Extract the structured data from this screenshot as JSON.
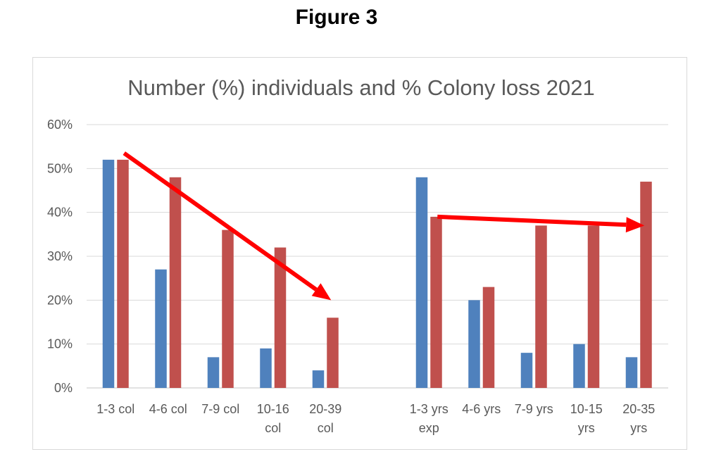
{
  "figure_title": "Figure 3",
  "chart_data": {
    "type": "bar",
    "title": "Number (%) individuals and % Colony loss 2021",
    "xlabel": "",
    "ylabel": "",
    "ylim": [
      0,
      60
    ],
    "y_ticks": [
      "0%",
      "10%",
      "20%",
      "30%",
      "40%",
      "50%",
      "60%"
    ],
    "grid": true,
    "legend": "none",
    "groups": [
      {
        "categories": [
          [
            "1-3 col"
          ],
          [
            "4-6 col"
          ],
          [
            "7-9 col"
          ],
          [
            "10-16",
            "col"
          ],
          [
            "20-39",
            "col"
          ]
        ],
        "series": [
          {
            "color": "#4f81bd",
            "values": [
              52,
              27,
              7,
              9,
              4
            ]
          },
          {
            "color": "#c0504d",
            "values": [
              52,
              48,
              36,
              32,
              16
            ]
          }
        ]
      },
      {
        "categories": [
          [
            "1-3 yrs",
            "exp"
          ],
          [
            "4-6 yrs"
          ],
          [
            "7-9 yrs"
          ],
          [
            "10-15",
            "yrs"
          ],
          [
            "20-35",
            "yrs"
          ]
        ],
        "series": [
          {
            "color": "#4f81bd",
            "values": [
              48,
              20,
              8,
              10,
              7
            ]
          },
          {
            "color": "#c0504d",
            "values": [
              39,
              23,
              37,
              37,
              47
            ]
          }
        ]
      }
    ],
    "trend_arrows": [
      {
        "group": 0,
        "from_category": 0,
        "to_category": 4,
        "from_value": 53.5,
        "to_value": 20,
        "color": "#ff0000"
      },
      {
        "group": 1,
        "from_category": 0,
        "to_category": 4,
        "from_value": 39,
        "to_value": 37,
        "color": "#ff0000"
      }
    ]
  }
}
